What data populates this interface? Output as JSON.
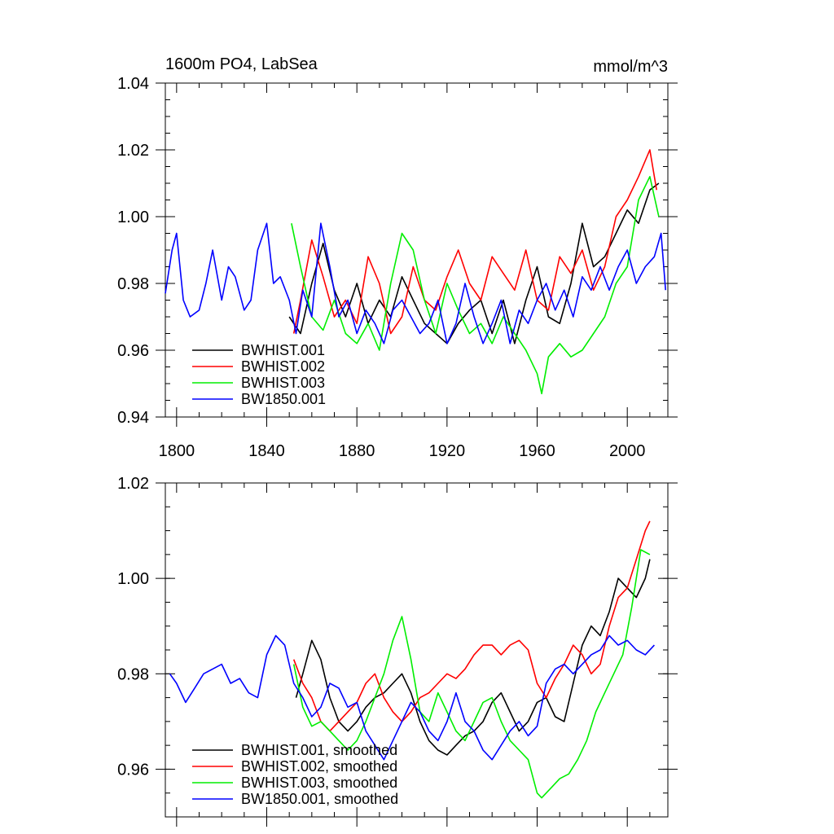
{
  "chart_data": [
    {
      "type": "line",
      "title": "1600m PO4, LabSea",
      "units": "mmol/m^3",
      "xlim": [
        1795,
        2018
      ],
      "ylim": [
        0.94,
        1.04
      ],
      "xticks": [
        1800,
        1840,
        1880,
        1920,
        1960,
        2000
      ],
      "xtick_labels": [
        "1800",
        "1840",
        "1880",
        "1920",
        "1960",
        "2000"
      ],
      "yticks": [
        0.94,
        0.96,
        0.98,
        1.0,
        1.02,
        1.04
      ],
      "ytick_labels": [
        "0.94",
        "0.96",
        "0.98",
        "1.00",
        "1.02",
        "1.04"
      ],
      "legend": "bottom-left",
      "series": [
        {
          "name": "BWHIST.001",
          "color": "#000000",
          "x": [
            1850,
            1855,
            1860,
            1865,
            1870,
            1875,
            1880,
            1885,
            1890,
            1895,
            1900,
            1905,
            1910,
            1915,
            1920,
            1925,
            1930,
            1935,
            1940,
            1945,
            1950,
            1955,
            1960,
            1965,
            1970,
            1975,
            1980,
            1985,
            1990,
            1995,
            2000,
            2005,
            2010,
            2014
          ],
          "y": [
            0.97,
            0.965,
            0.98,
            0.992,
            0.978,
            0.97,
            0.98,
            0.968,
            0.975,
            0.97,
            0.982,
            0.975,
            0.968,
            0.965,
            0.962,
            0.968,
            0.972,
            0.975,
            0.965,
            0.975,
            0.962,
            0.975,
            0.985,
            0.97,
            0.968,
            0.98,
            0.998,
            0.985,
            0.988,
            0.995,
            1.002,
            0.998,
            1.008,
            1.01
          ]
        },
        {
          "name": "BWHIST.002",
          "color": "#ff0000",
          "x": [
            1852,
            1855,
            1860,
            1865,
            1870,
            1875,
            1880,
            1885,
            1890,
            1895,
            1900,
            1905,
            1910,
            1915,
            1920,
            1925,
            1930,
            1935,
            1940,
            1945,
            1950,
            1955,
            1960,
            1965,
            1970,
            1975,
            1980,
            1985,
            1990,
            1995,
            2000,
            2005,
            2010,
            2013
          ],
          "y": [
            0.965,
            0.975,
            0.993,
            0.982,
            0.97,
            0.975,
            0.968,
            0.988,
            0.98,
            0.965,
            0.97,
            0.985,
            0.975,
            0.972,
            0.982,
            0.99,
            0.98,
            0.975,
            0.988,
            0.983,
            0.978,
            0.99,
            0.975,
            0.972,
            0.988,
            0.983,
            0.99,
            0.978,
            0.985,
            1.0,
            1.005,
            1.012,
            1.02,
            1.008
          ]
        },
        {
          "name": "BWHIST.003",
          "color": "#00ee00",
          "x": [
            1851,
            1855,
            1860,
            1865,
            1870,
            1875,
            1880,
            1885,
            1890,
            1895,
            1900,
            1905,
            1910,
            1915,
            1920,
            1925,
            1930,
            1935,
            1940,
            1945,
            1950,
            1955,
            1960,
            1962,
            1965,
            1970,
            1975,
            1980,
            1985,
            1990,
            1995,
            2000,
            2005,
            2010,
            2014
          ],
          "y": [
            0.998,
            0.985,
            0.97,
            0.966,
            0.975,
            0.965,
            0.962,
            0.968,
            0.96,
            0.98,
            0.995,
            0.99,
            0.975,
            0.965,
            0.98,
            0.972,
            0.965,
            0.968,
            0.962,
            0.97,
            0.965,
            0.96,
            0.953,
            0.947,
            0.958,
            0.962,
            0.958,
            0.96,
            0.965,
            0.97,
            0.98,
            0.985,
            1.005,
            1.012,
            1.0
          ]
        },
        {
          "name": "BW1850.001",
          "color": "#0000ff",
          "x": [
            1795,
            1798,
            1800,
            1803,
            1806,
            1810,
            1813,
            1816,
            1820,
            1823,
            1826,
            1830,
            1833,
            1836,
            1840,
            1843,
            1846,
            1850,
            1853,
            1856,
            1860,
            1864,
            1868,
            1872,
            1876,
            1880,
            1884,
            1888,
            1892,
            1896,
            1900,
            1904,
            1908,
            1912,
            1916,
            1920,
            1924,
            1928,
            1932,
            1936,
            1940,
            1944,
            1948,
            1952,
            1956,
            1960,
            1964,
            1968,
            1972,
            1976,
            1980,
            1984,
            1988,
            1992,
            1996,
            2000,
            2004,
            2008,
            2012,
            2015,
            2017
          ],
          "y": [
            0.977,
            0.99,
            0.995,
            0.975,
            0.97,
            0.972,
            0.98,
            0.99,
            0.975,
            0.985,
            0.982,
            0.972,
            0.975,
            0.99,
            0.998,
            0.98,
            0.982,
            0.975,
            0.965,
            0.978,
            0.97,
            0.998,
            0.985,
            0.97,
            0.975,
            0.965,
            0.972,
            0.968,
            0.962,
            0.972,
            0.975,
            0.97,
            0.965,
            0.968,
            0.975,
            0.962,
            0.968,
            0.98,
            0.97,
            0.962,
            0.968,
            0.975,
            0.962,
            0.972,
            0.968,
            0.975,
            0.98,
            0.972,
            0.978,
            0.97,
            0.982,
            0.978,
            0.985,
            0.978,
            0.985,
            0.99,
            0.98,
            0.985,
            0.988,
            0.995,
            0.978
          ]
        }
      ]
    },
    {
      "type": "line",
      "title": "",
      "xlim": [
        1795,
        2018
      ],
      "ylim": [
        0.95,
        1.02
      ],
      "xticks": [
        1800,
        1840,
        1880,
        1920,
        1960,
        2000
      ],
      "xtick_labels": [],
      "yticks": [
        0.96,
        0.98,
        1.0,
        1.02
      ],
      "ytick_labels": [
        "0.96",
        "0.98",
        "1.00",
        "1.02"
      ],
      "legend": "bottom-left",
      "series": [
        {
          "name": "BWHIST.001, smoothed",
          "color": "#000000",
          "x": [
            1853,
            1856,
            1860,
            1864,
            1868,
            1872,
            1876,
            1880,
            1884,
            1888,
            1892,
            1896,
            1900,
            1904,
            1908,
            1912,
            1916,
            1920,
            1924,
            1928,
            1932,
            1936,
            1940,
            1944,
            1948,
            1952,
            1956,
            1960,
            1964,
            1968,
            1972,
            1976,
            1980,
            1984,
            1988,
            1992,
            1996,
            2000,
            2004,
            2008,
            2010
          ],
          "y": [
            0.975,
            0.98,
            0.987,
            0.983,
            0.975,
            0.97,
            0.968,
            0.97,
            0.973,
            0.975,
            0.976,
            0.978,
            0.98,
            0.976,
            0.97,
            0.966,
            0.964,
            0.963,
            0.965,
            0.967,
            0.968,
            0.97,
            0.974,
            0.976,
            0.972,
            0.968,
            0.97,
            0.974,
            0.975,
            0.971,
            0.97,
            0.978,
            0.986,
            0.99,
            0.988,
            0.993,
            1.0,
            0.998,
            0.996,
            1.0,
            1.004
          ]
        },
        {
          "name": "BWHIST.002, smoothed",
          "color": "#ff0000",
          "x": [
            1852,
            1856,
            1860,
            1864,
            1868,
            1872,
            1876,
            1880,
            1884,
            1888,
            1892,
            1896,
            1900,
            1904,
            1908,
            1912,
            1916,
            1920,
            1924,
            1928,
            1932,
            1936,
            1940,
            1944,
            1948,
            1952,
            1956,
            1960,
            1964,
            1968,
            1972,
            1976,
            1980,
            1984,
            1988,
            1992,
            1996,
            2000,
            2004,
            2008,
            2010
          ],
          "y": [
            0.983,
            0.978,
            0.975,
            0.97,
            0.968,
            0.97,
            0.972,
            0.974,
            0.978,
            0.98,
            0.975,
            0.972,
            0.97,
            0.972,
            0.975,
            0.976,
            0.978,
            0.98,
            0.979,
            0.981,
            0.984,
            0.986,
            0.986,
            0.984,
            0.986,
            0.987,
            0.985,
            0.978,
            0.975,
            0.979,
            0.982,
            0.986,
            0.984,
            0.98,
            0.982,
            0.99,
            0.996,
            0.998,
            1.004,
            1.01,
            1.012
          ]
        },
        {
          "name": "BWHIST.003, smoothed",
          "color": "#00ee00",
          "x": [
            1852,
            1856,
            1860,
            1864,
            1868,
            1872,
            1876,
            1880,
            1884,
            1888,
            1892,
            1896,
            1900,
            1904,
            1908,
            1912,
            1916,
            1920,
            1924,
            1928,
            1932,
            1936,
            1940,
            1944,
            1948,
            1952,
            1956,
            1960,
            1962,
            1966,
            1970,
            1974,
            1978,
            1982,
            1986,
            1990,
            1994,
            1998,
            2002,
            2006,
            2010
          ],
          "y": [
            0.982,
            0.973,
            0.969,
            0.97,
            0.968,
            0.966,
            0.964,
            0.966,
            0.97,
            0.975,
            0.98,
            0.987,
            0.992,
            0.983,
            0.972,
            0.97,
            0.976,
            0.972,
            0.968,
            0.966,
            0.97,
            0.974,
            0.975,
            0.97,
            0.966,
            0.964,
            0.962,
            0.955,
            0.954,
            0.956,
            0.958,
            0.959,
            0.962,
            0.966,
            0.972,
            0.976,
            0.98,
            0.984,
            0.994,
            1.006,
            1.005
          ]
        },
        {
          "name": "BW1850.001, smoothed",
          "color": "#0000ff",
          "x": [
            1797,
            1800,
            1804,
            1808,
            1812,
            1816,
            1820,
            1824,
            1828,
            1832,
            1836,
            1840,
            1844,
            1848,
            1852,
            1856,
            1860,
            1864,
            1868,
            1872,
            1876,
            1880,
            1884,
            1888,
            1892,
            1896,
            1900,
            1904,
            1908,
            1912,
            1916,
            1920,
            1924,
            1928,
            1932,
            1936,
            1940,
            1944,
            1948,
            1952,
            1956,
            1960,
            1964,
            1968,
            1972,
            1976,
            1980,
            1984,
            1988,
            1992,
            1996,
            2000,
            2004,
            2008,
            2012
          ],
          "y": [
            0.98,
            0.978,
            0.974,
            0.977,
            0.98,
            0.981,
            0.982,
            0.978,
            0.979,
            0.976,
            0.975,
            0.984,
            0.988,
            0.986,
            0.978,
            0.975,
            0.971,
            0.973,
            0.978,
            0.977,
            0.973,
            0.974,
            0.968,
            0.965,
            0.962,
            0.966,
            0.97,
            0.974,
            0.972,
            0.968,
            0.966,
            0.97,
            0.976,
            0.97,
            0.968,
            0.964,
            0.962,
            0.965,
            0.968,
            0.97,
            0.967,
            0.969,
            0.978,
            0.981,
            0.982,
            0.98,
            0.982,
            0.984,
            0.985,
            0.988,
            0.986,
            0.987,
            0.985,
            0.984,
            0.986
          ]
        }
      ]
    }
  ]
}
